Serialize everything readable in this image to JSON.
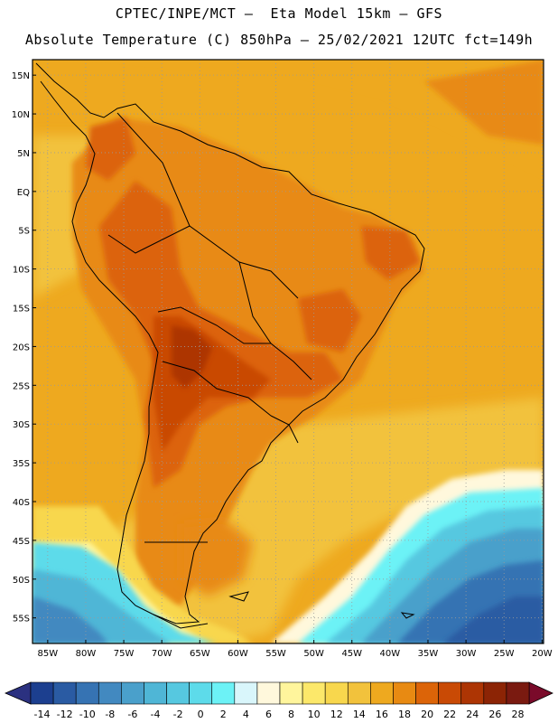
{
  "header": {
    "line1": "CPTEC/INPE/MCT –  Eta Model 15km – GFS",
    "line2": "Absolute Temperature (C) 850hPa – 25/02/2021 12UTC fct=149h"
  },
  "map": {
    "lat_labels": [
      "15N",
      "10N",
      "5N",
      "EQ",
      "5S",
      "10S",
      "15S",
      "20S",
      "25S",
      "30S",
      "35S",
      "40S",
      "45S",
      "50S",
      "55S"
    ],
    "lon_labels": [
      "85W",
      "80W",
      "75W",
      "70W",
      "65W",
      "60W",
      "55W",
      "50W",
      "45W",
      "40W",
      "35W",
      "30W",
      "25W",
      "20W"
    ],
    "lat_values": [
      15,
      10,
      5,
      0,
      -5,
      -10,
      -15,
      -20,
      -25,
      -30,
      -35,
      -40,
      -45,
      -50,
      -55
    ],
    "lon_values": [
      -85,
      -80,
      -75,
      -70,
      -65,
      -60,
      -55,
      -50,
      -45,
      -40,
      -35,
      -30,
      -25,
      -20
    ]
  },
  "colorbar": {
    "labels": [
      "-14",
      "-12",
      "-10",
      "-8",
      "-6",
      "-4",
      "-2",
      "0",
      "2",
      "4",
      "6",
      "8",
      "10",
      "12",
      "14",
      "16",
      "18",
      "20",
      "22",
      "24",
      "26",
      "28"
    ],
    "colors": [
      "#1c3f8f",
      "#2a5ba3",
      "#3673b3",
      "#4289c0",
      "#4aa0cb",
      "#4fb6d6",
      "#56c8e0",
      "#5ddbea",
      "#6cf2f6",
      "#d9f6fb",
      "#fff8dc",
      "#fff59c",
      "#fce86a",
      "#f8d74d",
      "#f2c23c",
      "#eea91f",
      "#e88a12",
      "#dc6408",
      "#c94a05",
      "#ad3504",
      "#8c2405",
      "#7a1a10"
    ],
    "left_end_color": "#2b3180",
    "right_end_color": "#7a0a2a"
  }
}
